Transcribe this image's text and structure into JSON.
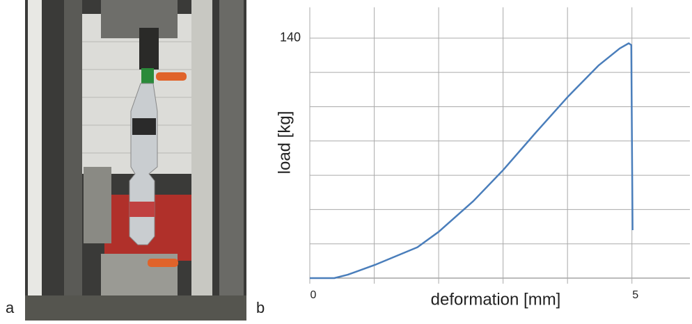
{
  "panel_labels": [
    "a",
    "b"
  ],
  "chart_data": {
    "type": "line",
    "xlabel": "deformation [mm]",
    "ylabel": "load [kg]",
    "xlim": [
      0,
      5.9
    ],
    "ylim": [
      0,
      158
    ],
    "xticks": [
      0,
      {
        "value": 1,
        "label": null
      },
      {
        "value": 2,
        "label": null
      },
      {
        "value": 3,
        "label": null
      },
      {
        "value": 4,
        "label": null
      },
      5
    ],
    "yticks": [
      {
        "value": 0,
        "label": null
      },
      {
        "value": 20,
        "label": null
      },
      {
        "value": 40,
        "label": null
      },
      {
        "value": 60,
        "label": null
      },
      {
        "value": 80,
        "label": null
      },
      {
        "value": 100,
        "label": null
      },
      {
        "value": 120,
        "label": null
      },
      140
    ],
    "grid": true,
    "series": [
      {
        "color": "#4a7ebb",
        "x": [
          0,
          0.38,
          0.59,
          1.03,
          1.67,
          2.0,
          2.54,
          3.0,
          3.51,
          4.01,
          4.48,
          4.81,
          4.95,
          4.99,
          5.01
        ],
        "values": [
          0,
          0,
          2,
          8,
          18,
          27,
          45,
          63,
          85,
          106,
          124,
          134,
          137,
          136,
          28
        ]
      }
    ]
  }
}
